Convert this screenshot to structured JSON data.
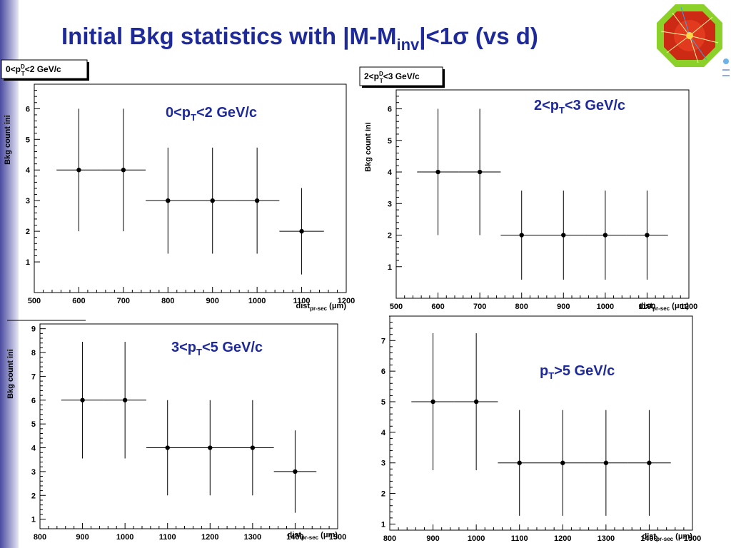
{
  "title": {
    "main": "Initial Bkg statistics with |M-M",
    "sub": "inv",
    "rest": "|<1σ (vs d)"
  },
  "colors": {
    "title": "#1f2a9a",
    "annotation": "#1f2a9a",
    "axes": "#000000",
    "sidebar_gradient": [
      "#4a4aa0",
      "#e6e6f5"
    ]
  },
  "logo": {
    "icon": "detector-event-display-icon"
  },
  "chart_data": [
    {
      "type": "scatter",
      "error_bars": true,
      "stats_box": {
        "text": "0<p",
        "sub": "T",
        "sup": "D",
        "rest": "<2 GeV/c"
      },
      "annotation": {
        "text": "0<p",
        "sub": "T",
        "rest": "<2 GeV/c"
      },
      "xlabel": {
        "text": "dist",
        "sub": "pr-sec",
        "rest": " (μm)"
      },
      "ylabel": "Bkg count ini",
      "xlim": [
        500,
        1200
      ],
      "ylim": [
        0,
        6.8
      ],
      "xticks": [
        500,
        600,
        700,
        800,
        900,
        1000,
        1100,
        1200
      ],
      "yticks": [
        1,
        2,
        3,
        4,
        5,
        6
      ],
      "points": [
        {
          "x": 600,
          "y": 4,
          "xlo": 550,
          "xhi": 650,
          "ylo": 2,
          "yhi": 6
        },
        {
          "x": 700,
          "y": 4,
          "xlo": 650,
          "xhi": 750,
          "ylo": 2,
          "yhi": 6
        },
        {
          "x": 800,
          "y": 3,
          "xlo": 750,
          "xhi": 850,
          "ylo": 1.27,
          "yhi": 4.73
        },
        {
          "x": 900,
          "y": 3,
          "xlo": 850,
          "xhi": 950,
          "ylo": 1.27,
          "yhi": 4.73
        },
        {
          "x": 1000,
          "y": 3,
          "xlo": 950,
          "xhi": 1050,
          "ylo": 1.27,
          "yhi": 4.73
        },
        {
          "x": 1100,
          "y": 2,
          "xlo": 1050,
          "xhi": 1150,
          "ylo": 0.59,
          "yhi": 3.41
        }
      ]
    },
    {
      "type": "scatter",
      "error_bars": true,
      "stats_box": {
        "text": "2<p",
        "sub": "T",
        "sup": "D",
        "rest": "<3 GeV/c"
      },
      "annotation": {
        "text": "2<p",
        "sub": "T",
        "rest": "<3 GeV/c"
      },
      "xlabel": {
        "text": "dist",
        "sub": "pr-sec",
        "rest": " (μm)"
      },
      "ylabel": "Bkg count ini",
      "xlim": [
        500,
        1200
      ],
      "ylim": [
        0,
        6.6
      ],
      "xticks": [
        500,
        600,
        700,
        800,
        900,
        1000,
        1100,
        1200
      ],
      "yticks": [
        1,
        2,
        3,
        4,
        5,
        6
      ],
      "points": [
        {
          "x": 600,
          "y": 4,
          "xlo": 550,
          "xhi": 650,
          "ylo": 2,
          "yhi": 6
        },
        {
          "x": 700,
          "y": 4,
          "xlo": 650,
          "xhi": 750,
          "ylo": 2,
          "yhi": 6
        },
        {
          "x": 800,
          "y": 2,
          "xlo": 750,
          "xhi": 850,
          "ylo": 0.59,
          "yhi": 3.41
        },
        {
          "x": 900,
          "y": 2,
          "xlo": 850,
          "xhi": 950,
          "ylo": 0.59,
          "yhi": 3.41
        },
        {
          "x": 1000,
          "y": 2,
          "xlo": 950,
          "xhi": 1050,
          "ylo": 0.59,
          "yhi": 3.41
        },
        {
          "x": 1100,
          "y": 2,
          "xlo": 1050,
          "xhi": 1150,
          "ylo": 0.59,
          "yhi": 3.41
        }
      ]
    },
    {
      "type": "scatter",
      "error_bars": true,
      "annotation": {
        "text": "3<p",
        "sub": "T",
        "rest": "<5 GeV/c"
      },
      "xlabel": {
        "text": "dist",
        "sub": "pr-sec",
        "rest": " (μm)"
      },
      "ylabel": "Bkg count ini",
      "xlim": [
        800,
        1500
      ],
      "ylim": [
        0.6,
        9.2
      ],
      "xticks": [
        800,
        900,
        1000,
        1100,
        1200,
        1300,
        1400,
        1500
      ],
      "yticks": [
        1,
        2,
        3,
        4,
        5,
        6,
        7,
        8,
        9
      ],
      "points": [
        {
          "x": 900,
          "y": 6,
          "xlo": 850,
          "xhi": 950,
          "ylo": 3.55,
          "yhi": 8.45
        },
        {
          "x": 1000,
          "y": 6,
          "xlo": 950,
          "xhi": 1050,
          "ylo": 3.55,
          "yhi": 8.45
        },
        {
          "x": 1100,
          "y": 4,
          "xlo": 1050,
          "xhi": 1150,
          "ylo": 2,
          "yhi": 6
        },
        {
          "x": 1200,
          "y": 4,
          "xlo": 1150,
          "xhi": 1250,
          "ylo": 2,
          "yhi": 6
        },
        {
          "x": 1300,
          "y": 4,
          "xlo": 1250,
          "xhi": 1350,
          "ylo": 2,
          "yhi": 6
        },
        {
          "x": 1400,
          "y": 3,
          "xlo": 1350,
          "xhi": 1450,
          "ylo": 1.27,
          "yhi": 4.73
        }
      ]
    },
    {
      "type": "scatter",
      "error_bars": true,
      "annotation": {
        "text": "p",
        "sub": "T",
        "rest": ">5 GeV/c"
      },
      "xlabel": {
        "text": "dist",
        "sub": "pr-sec",
        "rest": " (μm)"
      },
      "ylabel": "",
      "xlim": [
        800,
        1500
      ],
      "ylim": [
        0.8,
        7.8
      ],
      "xticks": [
        800,
        900,
        1000,
        1100,
        1200,
        1300,
        1400,
        1500
      ],
      "yticks": [
        1,
        2,
        3,
        4,
        5,
        6,
        7
      ],
      "points": [
        {
          "x": 900,
          "y": 5,
          "xlo": 850,
          "xhi": 950,
          "ylo": 2.76,
          "yhi": 7.24
        },
        {
          "x": 1000,
          "y": 5,
          "xlo": 950,
          "xhi": 1050,
          "ylo": 2.76,
          "yhi": 7.24
        },
        {
          "x": 1100,
          "y": 3,
          "xlo": 1050,
          "xhi": 1150,
          "ylo": 1.27,
          "yhi": 4.73
        },
        {
          "x": 1200,
          "y": 3,
          "xlo": 1150,
          "xhi": 1250,
          "ylo": 1.27,
          "yhi": 4.73
        },
        {
          "x": 1300,
          "y": 3,
          "xlo": 1250,
          "xhi": 1350,
          "ylo": 1.27,
          "yhi": 4.73
        },
        {
          "x": 1400,
          "y": 3,
          "xlo": 1350,
          "xhi": 1450,
          "ylo": 1.27,
          "yhi": 4.73
        }
      ]
    }
  ]
}
